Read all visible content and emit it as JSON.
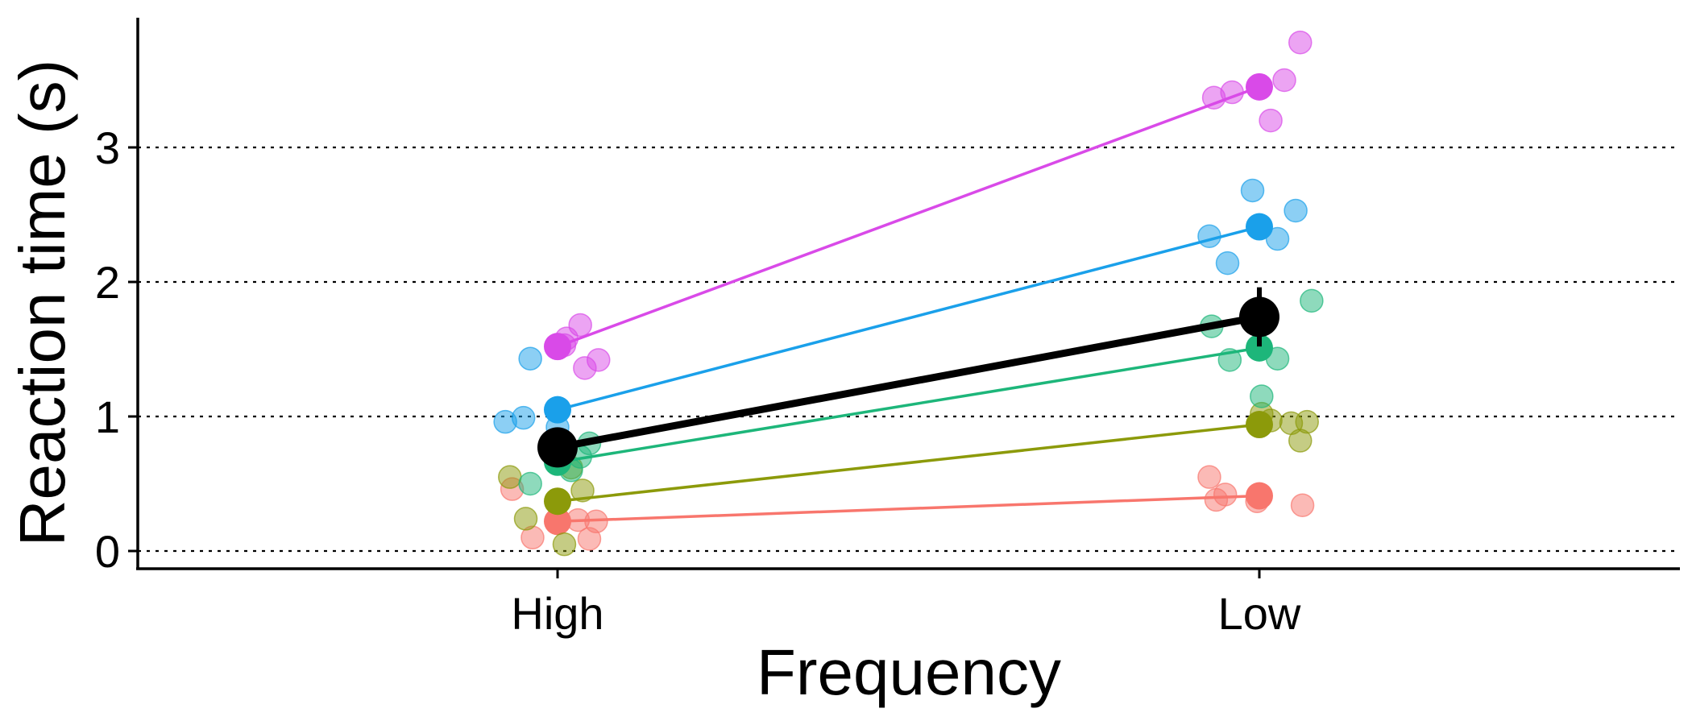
{
  "chart_data": {
    "type": "scatter",
    "xlabel": "Frequency",
    "ylabel": "Reaction time (s)",
    "categories": [
      "High",
      "Low"
    ],
    "yticks": [
      0,
      1,
      2,
      3
    ],
    "ylim": [
      -0.13,
      3.95
    ],
    "grid": "horizontal dotted lines at y ticks",
    "legend": "none",
    "series": [
      {
        "color": "#f8766d",
        "means": [
          0.22,
          0.41
        ],
        "points": [
          {
            "x": "High",
            "y": 0.46,
            "jitter": -0.2
          },
          {
            "x": "High",
            "y": 0.1,
            "jitter": -0.11
          },
          {
            "x": "High",
            "y": 0.23,
            "jitter": 0.09
          },
          {
            "x": "High",
            "y": 0.22,
            "jitter": 0.17
          },
          {
            "x": "High",
            "y": 0.09,
            "jitter": 0.14
          },
          {
            "x": "Low",
            "y": 0.55,
            "jitter": -0.22
          },
          {
            "x": "Low",
            "y": 0.38,
            "jitter": -0.19
          },
          {
            "x": "Low",
            "y": 0.42,
            "jitter": -0.15
          },
          {
            "x": "Low",
            "y": 0.37,
            "jitter": -0.01
          },
          {
            "x": "Low",
            "y": 0.34,
            "jitter": 0.19
          }
        ]
      },
      {
        "color": "#8c9a0a",
        "means": [
          0.37,
          0.94
        ],
        "points": [
          {
            "x": "High",
            "y": 0.55,
            "jitter": -0.21
          },
          {
            "x": "High",
            "y": 0.24,
            "jitter": -0.14
          },
          {
            "x": "High",
            "y": 0.05,
            "jitter": 0.03
          },
          {
            "x": "High",
            "y": 0.45,
            "jitter": 0.11
          },
          {
            "x": "High",
            "y": 0.62,
            "jitter": 0.06
          },
          {
            "x": "Low",
            "y": 0.97,
            "jitter": 0.05
          },
          {
            "x": "Low",
            "y": 0.95,
            "jitter": 0.14
          },
          {
            "x": "Low",
            "y": 0.96,
            "jitter": 0.21
          },
          {
            "x": "Low",
            "y": 0.82,
            "jitter": 0.18
          },
          {
            "x": "Low",
            "y": 1.02,
            "jitter": 0.01
          }
        ]
      },
      {
        "color": "#1db67a",
        "means": [
          0.66,
          1.51
        ],
        "points": [
          {
            "x": "High",
            "y": 0.5,
            "jitter": -0.12
          },
          {
            "x": "High",
            "y": 0.74,
            "jitter": -0.03
          },
          {
            "x": "High",
            "y": 0.6,
            "jitter": 0.06
          },
          {
            "x": "High",
            "y": 0.8,
            "jitter": 0.14
          },
          {
            "x": "High",
            "y": 0.7,
            "jitter": 0.1
          },
          {
            "x": "Low",
            "y": 1.67,
            "jitter": -0.21
          },
          {
            "x": "Low",
            "y": 1.42,
            "jitter": -0.13
          },
          {
            "x": "Low",
            "y": 1.43,
            "jitter": 0.08
          },
          {
            "x": "Low",
            "y": 1.15,
            "jitter": 0.01
          },
          {
            "x": "Low",
            "y": 1.86,
            "jitter": 0.23
          }
        ]
      },
      {
        "color": "#1aa0ea",
        "means": [
          1.05,
          2.41
        ],
        "points": [
          {
            "x": "High",
            "y": 0.96,
            "jitter": -0.23
          },
          {
            "x": "High",
            "y": 0.99,
            "jitter": -0.15
          },
          {
            "x": "High",
            "y": 1.43,
            "jitter": -0.12
          },
          {
            "x": "High",
            "y": 0.92,
            "jitter": 0.0
          },
          {
            "x": "Low",
            "y": 2.68,
            "jitter": -0.03
          },
          {
            "x": "Low",
            "y": 2.34,
            "jitter": -0.22
          },
          {
            "x": "Low",
            "y": 2.14,
            "jitter": -0.14
          },
          {
            "x": "Low",
            "y": 2.32,
            "jitter": 0.08
          },
          {
            "x": "Low",
            "y": 2.53,
            "jitter": 0.16
          }
        ]
      },
      {
        "color": "#d94ae8",
        "means": [
          1.52,
          3.45
        ],
        "points": [
          {
            "x": "High",
            "y": 1.58,
            "jitter": 0.04
          },
          {
            "x": "High",
            "y": 1.53,
            "jitter": 0.03
          },
          {
            "x": "High",
            "y": 1.68,
            "jitter": 0.1
          },
          {
            "x": "High",
            "y": 1.36,
            "jitter": 0.12
          },
          {
            "x": "High",
            "y": 1.42,
            "jitter": 0.18
          },
          {
            "x": "Low",
            "y": 3.37,
            "jitter": -0.2
          },
          {
            "x": "Low",
            "y": 3.41,
            "jitter": -0.12
          },
          {
            "x": "Low",
            "y": 3.2,
            "jitter": 0.05
          },
          {
            "x": "Low",
            "y": 3.5,
            "jitter": 0.11
          },
          {
            "x": "Low",
            "y": 3.78,
            "jitter": 0.18
          }
        ]
      }
    ],
    "grand_mean": {
      "color": "#000000",
      "means": [
        0.77,
        1.74
      ],
      "error": [
        0.07,
        0.22
      ]
    }
  }
}
